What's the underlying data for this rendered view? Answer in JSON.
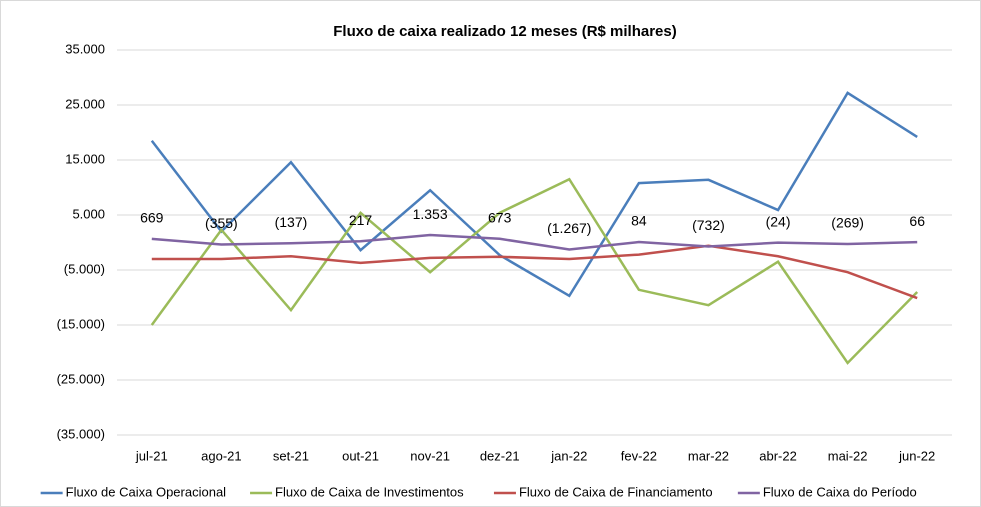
{
  "chart_data": {
    "type": "line",
    "title": "Fluxo de caixa realizado 12 meses (R$ milhares)",
    "categories": [
      "jul-21",
      "ago-21",
      "set-21",
      "out-21",
      "nov-21",
      "dez-21",
      "jan-22",
      "fev-22",
      "mar-22",
      "abr-22",
      "mai-22",
      "jun-22"
    ],
    "series": [
      {
        "name": "Fluxo de Caixa Operacional",
        "color": "#4a7ebb",
        "values": [
          18500,
          2000,
          14600,
          -1400,
          9500,
          -2300,
          -9700,
          10800,
          11400,
          5900,
          27200,
          19200
        ]
      },
      {
        "name": "Fluxo de Caixa de Investimentos",
        "color": "#9bbb59",
        "values": [
          -15000,
          2300,
          -12300,
          5400,
          -5400,
          5400,
          11500,
          -8600,
          -11400,
          -3500,
          -21900,
          -9000
        ]
      },
      {
        "name": "Fluxo de Caixa de Financiamento",
        "color": "#c0504d",
        "values": [
          -3000,
          -3000,
          -2500,
          -3700,
          -2800,
          -2600,
          -3000,
          -2200,
          -600,
          -2500,
          -5400,
          -10100
        ]
      },
      {
        "name": "Fluxo de Caixa do Período",
        "color": "#8064a2",
        "values": [
          669,
          -355,
          -137,
          217,
          1353,
          673,
          -1267,
          84,
          -732,
          -24,
          -269,
          66
        ],
        "value_labels": [
          "669",
          "(355)",
          "(137)",
          "217",
          "1.353",
          "673",
          "(1.267)",
          "84",
          "(732)",
          "(24)",
          "(269)",
          "66"
        ]
      }
    ],
    "ylim": [
      -35000,
      35000
    ],
    "yticks": [
      {
        "value": -35000,
        "label": "(35.000)"
      },
      {
        "value": -25000,
        "label": "(25.000)"
      },
      {
        "value": -15000,
        "label": "(15.000)"
      },
      {
        "value": -5000,
        "label": "(5.000)"
      },
      {
        "value": 5000,
        "label": "5.000"
      },
      {
        "value": 15000,
        "label": "15.000"
      },
      {
        "value": 25000,
        "label": "25.000"
      },
      {
        "value": 35000,
        "label": "35.000"
      }
    ],
    "grid": true,
    "legend": "bottom"
  }
}
